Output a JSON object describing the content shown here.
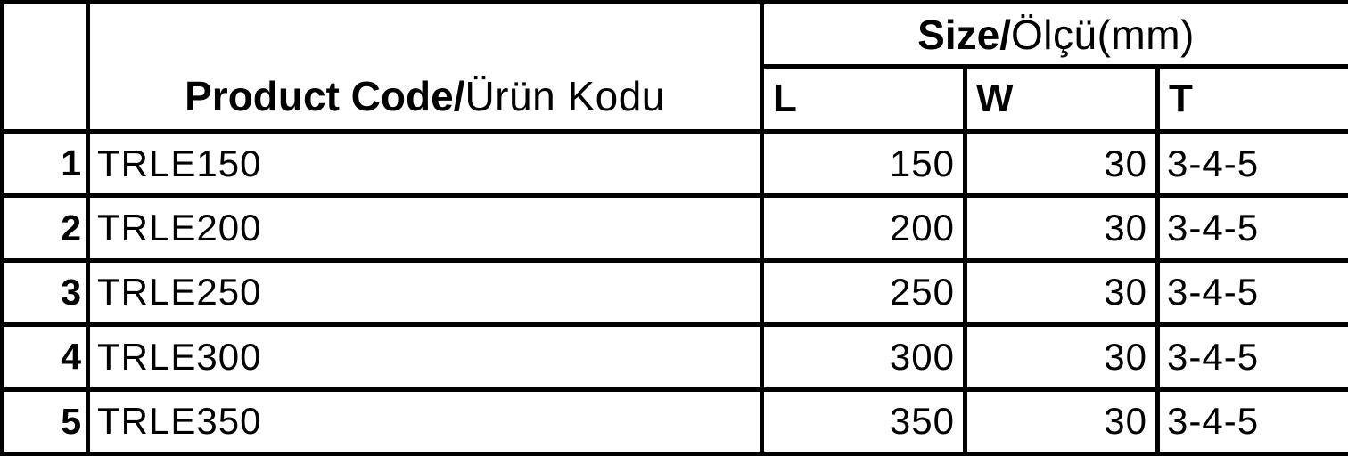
{
  "table": {
    "product_code_header": {
      "bold": "Product Code/",
      "light": "Ürün Kodu"
    },
    "size_header": {
      "bold": "Size/",
      "light": "Ölçü(mm)"
    },
    "dimension_columns": [
      "L",
      "W",
      "T"
    ],
    "rows": [
      {
        "num": "1",
        "code": "TRLE150",
        "l": "150",
        "w": "30",
        "t": "3-4-5"
      },
      {
        "num": "2",
        "code": "TRLE200",
        "l": "200",
        "w": "30",
        "t": "3-4-5"
      },
      {
        "num": "3",
        "code": "TRLE250",
        "l": "250",
        "w": "30",
        "t": "3-4-5"
      },
      {
        "num": "4",
        "code": "TRLE300",
        "l": "300",
        "w": "30",
        "t": "3-4-5"
      },
      {
        "num": "5",
        "code": "TRLE350",
        "l": "350",
        "w": "30",
        "t": "3-4-5"
      }
    ],
    "colors": {
      "border": "#000000",
      "text": "#000000",
      "background": "#ffffff"
    }
  }
}
